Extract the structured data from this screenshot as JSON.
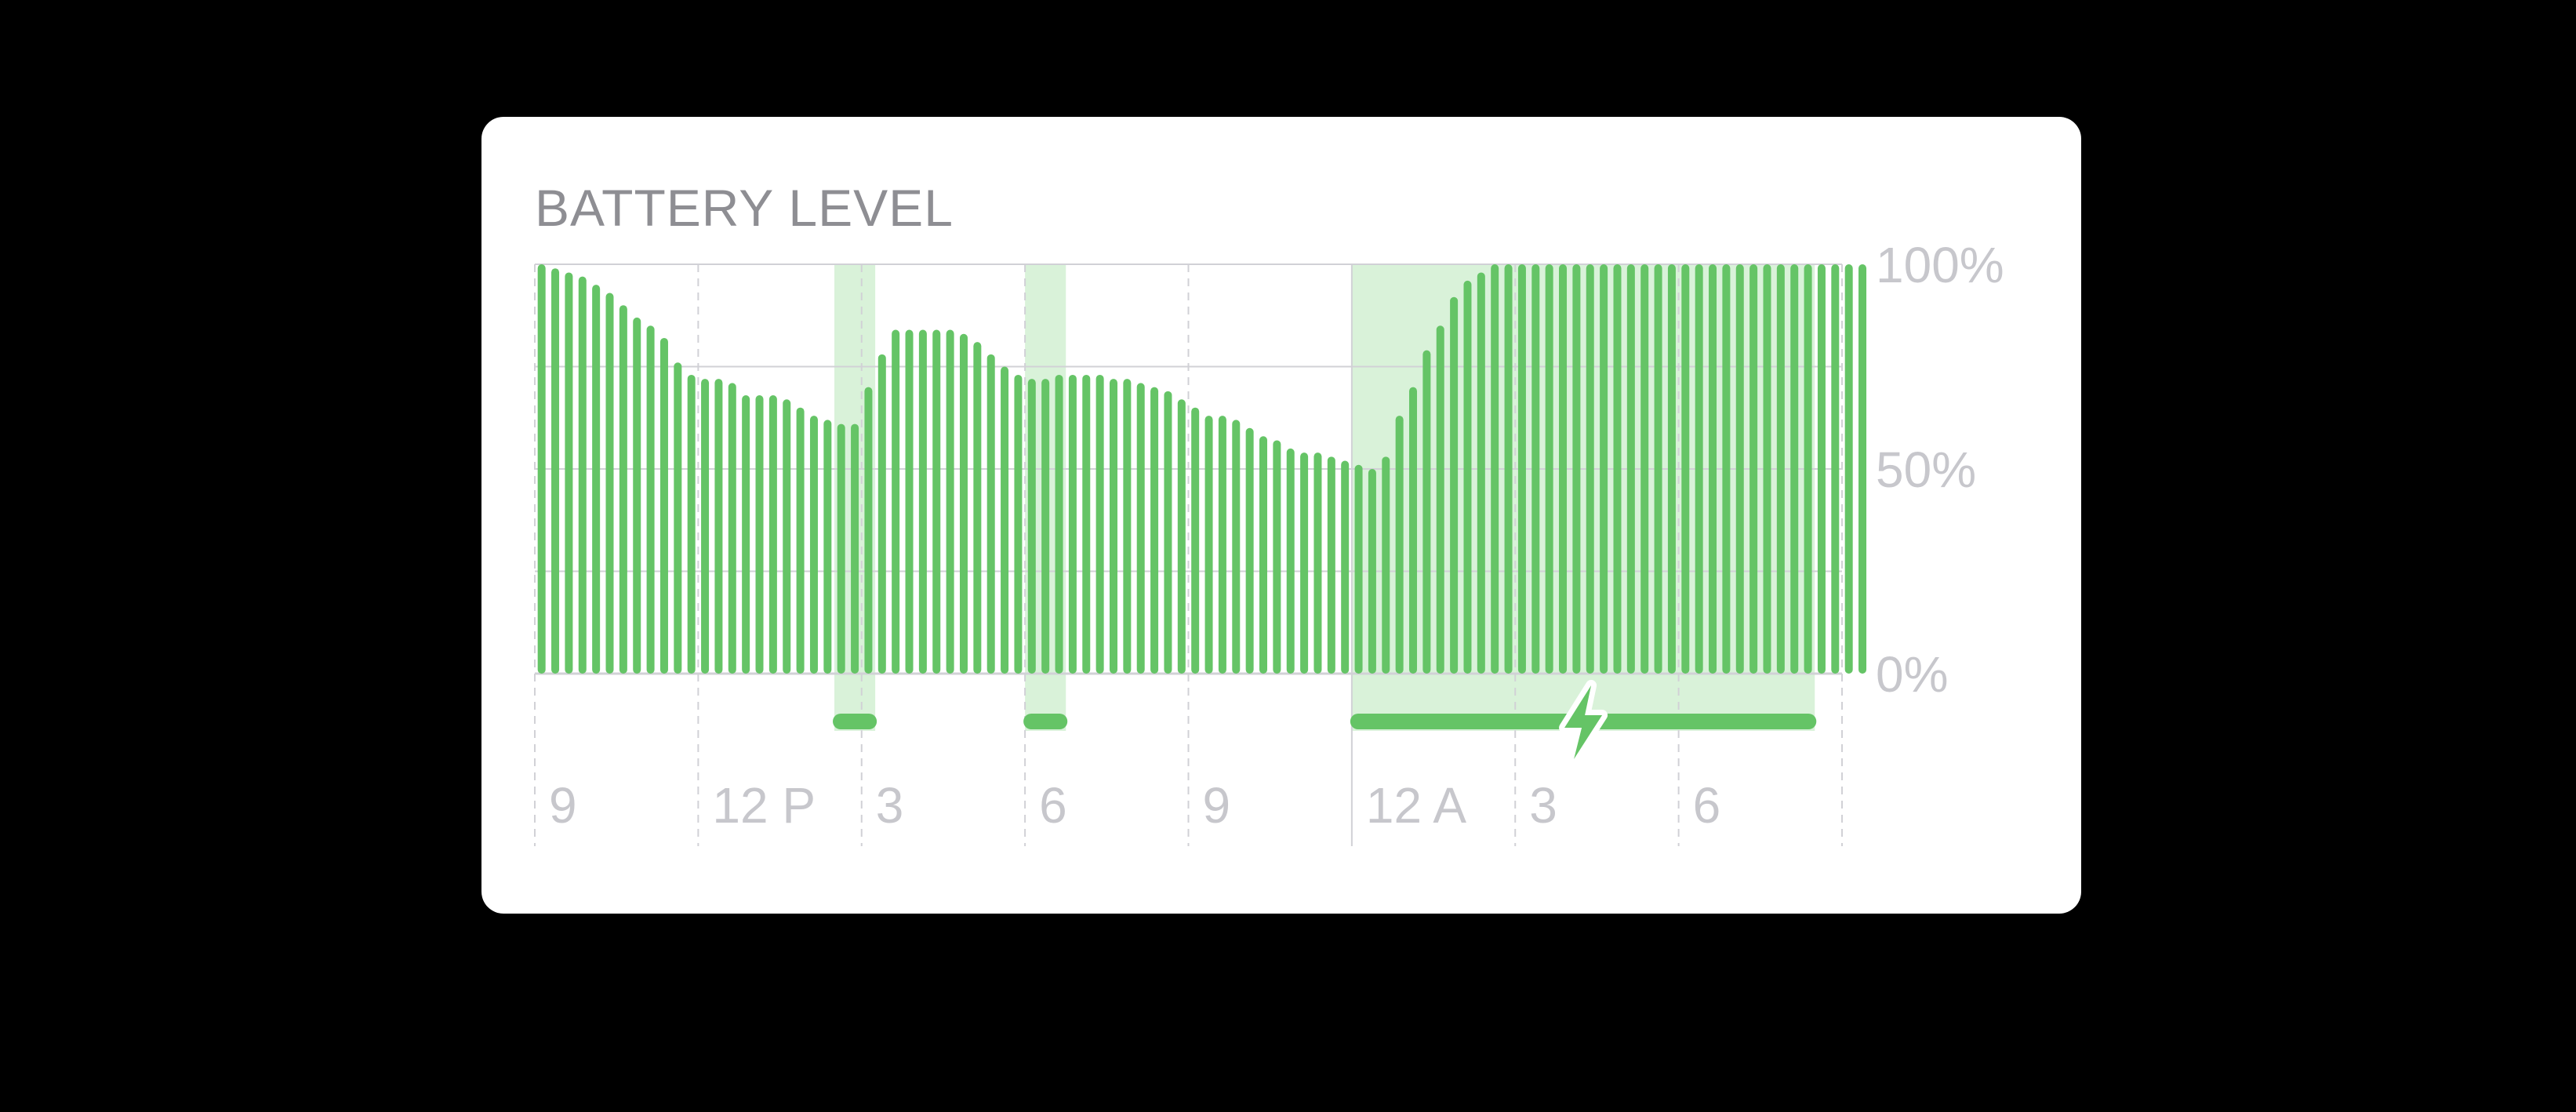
{
  "title": "BATTERY LEVEL",
  "colors": {
    "bar": "#65c466",
    "charging_band": "#d9f2d9",
    "charging_line": "#65c466",
    "grid": "#d1d1d6",
    "label": "#c7c7cc",
    "title": "#8e8e93",
    "background": "#000000",
    "card": "#ffffff"
  },
  "icons": {
    "charging": "lightning-bolt-icon"
  },
  "chart_data": {
    "type": "bar",
    "title": "BATTERY LEVEL",
    "x_tick_labels": [
      "9",
      "12 P",
      "3",
      "6",
      "9",
      "12 A",
      "3",
      "6"
    ],
    "y_tick_labels": [
      "100%",
      "50%",
      "0%"
    ],
    "ylim": [
      0,
      100
    ],
    "y_axis_position": "right",
    "grid": true,
    "x_start_hour": 9,
    "x_end_hour": 33,
    "bar_interval_minutes": 15,
    "series": [
      {
        "values": [
          100,
          99,
          98,
          97,
          95,
          93,
          90,
          87,
          85,
          82,
          76,
          73,
          72,
          72,
          71,
          68,
          68,
          68,
          67,
          65,
          63,
          62,
          61,
          61,
          70,
          78,
          84,
          84,
          84,
          84,
          84,
          83,
          81,
          78,
          75,
          73,
          72,
          72,
          73,
          73,
          73,
          73,
          72,
          72,
          71,
          70,
          69,
          67,
          65,
          63,
          63,
          62,
          60,
          58,
          57,
          55,
          54,
          54,
          53,
          52,
          51,
          50,
          53,
          63,
          70,
          79,
          85,
          92,
          96,
          98,
          100,
          100,
          100,
          100,
          100,
          100,
          100,
          100,
          100,
          100,
          100,
          100,
          100,
          100,
          100,
          100,
          100,
          100,
          100,
          100,
          100,
          100,
          100,
          100,
          100,
          100,
          100,
          100
        ]
      }
    ],
    "charging_periods": [
      {
        "start_hour": 14.5,
        "end_hour": 15.25
      },
      {
        "start_hour": 18,
        "end_hour": 18.75
      },
      {
        "start_hour": 24,
        "end_hour": 32.5
      }
    ]
  }
}
